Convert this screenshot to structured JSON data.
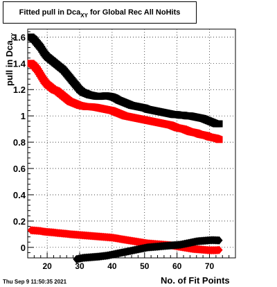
{
  "title": {
    "main": "Fitted pull in Dca",
    "sub": "XY",
    "rest": "for Global Rec All NoHits"
  },
  "datestamp": "Thu Sep  9 11:50:35 2021",
  "chart_data": {
    "type": "scatter",
    "title": "Fitted pull in Dca_XY for Global Rec All NoHits",
    "xlabel": "No. of Fit Points",
    "ylabel": "pull in Dca_XY",
    "xlim": [
      14,
      78
    ],
    "ylim": [
      -0.08,
      1.66
    ],
    "xticks": [
      20,
      30,
      40,
      50,
      60,
      70
    ],
    "yticks": [
      0,
      0.2,
      0.4,
      0.6,
      0.8,
      1,
      1.2,
      1.4,
      1.6
    ],
    "ytick_labels": [
      "0",
      "0.2",
      "0.4",
      "0.6",
      "0.8",
      "1",
      "1.2",
      "1.4",
      "1.6"
    ],
    "grid": true,
    "legend": "none",
    "series": [
      {
        "marker": "square",
        "color": "#000000",
        "x": [
          15,
          16,
          17,
          18,
          19,
          20,
          21,
          22,
          23,
          24,
          25,
          26,
          27,
          28,
          29,
          30,
          31,
          32,
          33,
          34,
          35,
          36,
          37,
          38,
          39,
          40,
          41,
          42,
          43,
          44,
          45,
          46,
          47,
          48,
          49,
          50,
          51,
          52,
          53,
          54,
          55,
          56,
          57,
          58,
          59,
          60,
          61,
          62,
          63,
          64,
          65,
          66,
          67,
          68,
          69,
          70,
          71,
          72,
          73
        ],
        "y": [
          1.6,
          1.58,
          1.55,
          1.52,
          1.48,
          1.45,
          1.43,
          1.41,
          1.39,
          1.37,
          1.35,
          1.32,
          1.29,
          1.26,
          1.23,
          1.2,
          1.18,
          1.17,
          1.16,
          1.155,
          1.15,
          1.148,
          1.15,
          1.153,
          1.15,
          1.145,
          1.135,
          1.12,
          1.11,
          1.1,
          1.09,
          1.08,
          1.075,
          1.07,
          1.065,
          1.06,
          1.05,
          1.045,
          1.04,
          1.035,
          1.03,
          1.025,
          1.02,
          1.015,
          1.01,
          1.01,
          1.005,
          1.005,
          1.0,
          1.0,
          0.995,
          0.99,
          0.985,
          0.98,
          0.97,
          0.96,
          0.95,
          0.94,
          0.94
        ]
      },
      {
        "marker": "square",
        "color": "#ff0000",
        "x": [
          15,
          16,
          17,
          18,
          19,
          20,
          21,
          22,
          23,
          24,
          25,
          26,
          27,
          28,
          29,
          30,
          31,
          32,
          33,
          34,
          35,
          36,
          37,
          38,
          39,
          40,
          41,
          42,
          43,
          44,
          45,
          46,
          47,
          48,
          49,
          50,
          51,
          52,
          53,
          54,
          55,
          56,
          57,
          58,
          59,
          60,
          61,
          62,
          63,
          64,
          65,
          66,
          67,
          68,
          69,
          70,
          71,
          72,
          73
        ],
        "y": [
          1.4,
          1.38,
          1.35,
          1.31,
          1.27,
          1.24,
          1.22,
          1.2,
          1.19,
          1.17,
          1.15,
          1.13,
          1.11,
          1.1,
          1.09,
          1.08,
          1.075,
          1.07,
          1.07,
          1.068,
          1.065,
          1.06,
          1.055,
          1.05,
          1.045,
          1.04,
          1.03,
          1.02,
          1.01,
          1.0,
          0.995,
          0.99,
          0.985,
          0.98,
          0.975,
          0.97,
          0.965,
          0.96,
          0.955,
          0.95,
          0.945,
          0.94,
          0.935,
          0.93,
          0.92,
          0.91,
          0.905,
          0.9,
          0.89,
          0.88,
          0.875,
          0.87,
          0.86,
          0.855,
          0.85,
          0.84,
          0.835,
          0.83,
          0.82
        ]
      },
      {
        "marker": "diamond",
        "color": "#ff0000",
        "x": [
          15,
          16,
          17,
          18,
          19,
          20,
          21,
          22,
          23,
          24,
          25,
          26,
          27,
          28,
          29,
          30,
          31,
          32,
          33,
          34,
          35,
          36,
          37,
          38,
          39,
          40,
          41,
          42,
          43,
          44,
          45,
          46,
          47,
          48,
          49,
          50,
          51,
          52,
          53,
          54,
          55,
          56,
          57,
          58,
          59,
          60,
          61,
          62,
          63,
          64,
          65,
          66,
          67,
          68,
          69,
          70,
          71,
          72,
          73
        ],
        "y": [
          0.13,
          0.128,
          0.126,
          0.124,
          0.12,
          0.117,
          0.115,
          0.113,
          0.11,
          0.108,
          0.105,
          0.103,
          0.1,
          0.098,
          0.096,
          0.094,
          0.092,
          0.09,
          0.088,
          0.086,
          0.084,
          0.082,
          0.08,
          0.078,
          0.076,
          0.074,
          0.07,
          0.066,
          0.062,
          0.058,
          0.054,
          0.05,
          0.046,
          0.042,
          0.038,
          0.034,
          0.03,
          0.028,
          0.026,
          0.024,
          0.022,
          0.02,
          0.018,
          0.016,
          0.012,
          0.008,
          0.004,
          0.0,
          -0.004,
          -0.008,
          -0.012,
          -0.014,
          -0.016,
          -0.018,
          -0.02,
          -0.022,
          -0.022,
          -0.022,
          -0.02
        ]
      },
      {
        "marker": "diamond",
        "color": "#000000",
        "x": [
          18,
          19,
          20,
          21,
          22,
          23,
          24,
          25,
          26,
          27,
          28,
          29,
          30,
          31,
          32,
          33,
          34,
          35,
          36,
          37,
          38,
          39,
          40,
          41,
          42,
          43,
          44,
          45,
          46,
          47,
          48,
          49,
          50,
          51,
          52,
          53,
          54,
          55,
          56,
          57,
          58,
          59,
          60,
          61,
          62,
          63,
          64,
          65,
          66,
          67,
          68,
          69,
          70,
          71,
          72,
          73
        ],
        "y": [
          -0.18,
          -0.16,
          -0.15,
          -0.14,
          -0.13,
          -0.12,
          -0.115,
          -0.11,
          -0.105,
          -0.1,
          -0.095,
          -0.09,
          -0.085,
          -0.08,
          -0.078,
          -0.076,
          -0.074,
          -0.072,
          -0.07,
          -0.067,
          -0.064,
          -0.06,
          -0.055,
          -0.05,
          -0.045,
          -0.04,
          -0.035,
          -0.03,
          -0.025,
          -0.02,
          -0.015,
          -0.01,
          -0.005,
          0.0,
          0.002,
          0.004,
          0.006,
          0.008,
          0.01,
          0.012,
          0.014,
          0.016,
          0.018,
          0.02,
          0.025,
          0.03,
          0.035,
          0.04,
          0.045,
          0.048,
          0.05,
          0.052,
          0.054,
          0.055,
          0.054,
          0.053
        ]
      }
    ]
  }
}
